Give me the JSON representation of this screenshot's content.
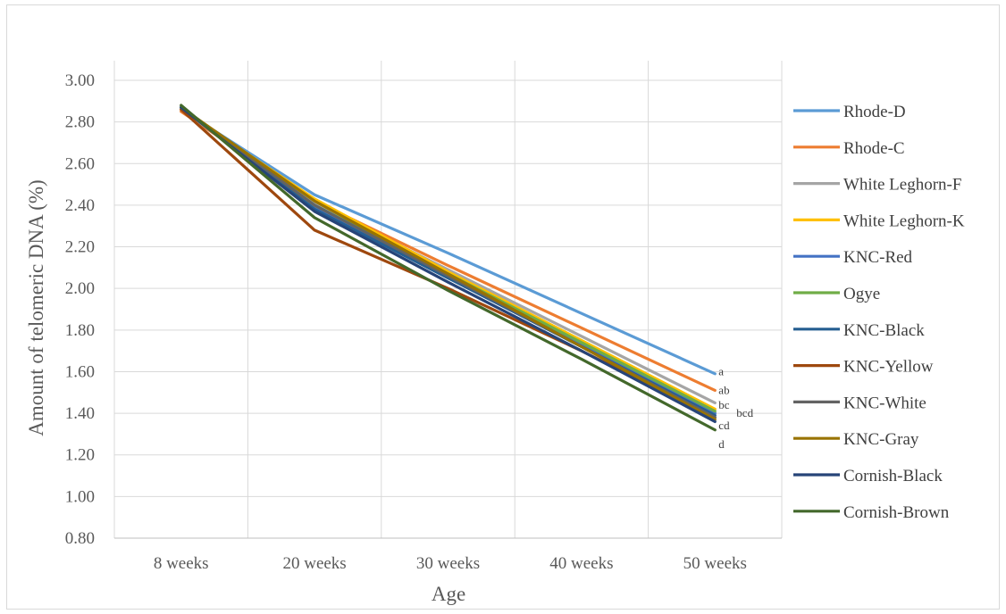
{
  "chart_data": {
    "type": "line",
    "title": "",
    "xlabel": "Age",
    "ylabel": "Amount of telomeric DNA (%)",
    "categories": [
      "8 weeks",
      "20 weeks",
      "30 weeks",
      "40 weeks",
      "50 weeks"
    ],
    "yticks": [
      "0.80",
      "1.00",
      "1.20",
      "1.40",
      "1.60",
      "1.80",
      "2.00",
      "2.20",
      "2.40",
      "2.60",
      "2.80",
      "3.00"
    ],
    "ylim": [
      0.8,
      3.0
    ],
    "grid": true,
    "legend_position": "right",
    "series": [
      {
        "name": "Rhode-D",
        "color": "#5B9BD5",
        "values": [
          2.86,
          2.45,
          2.17,
          1.88,
          1.59
        ]
      },
      {
        "name": "Rhode-C",
        "color": "#ED7D31",
        "values": [
          2.85,
          2.42,
          2.11,
          1.81,
          1.51
        ]
      },
      {
        "name": "White Leghorn-F",
        "color": "#A5A5A5",
        "values": [
          2.86,
          2.41,
          2.09,
          1.77,
          1.45
        ]
      },
      {
        "name": "White Leghorn-K",
        "color": "#FFC000",
        "values": [
          2.86,
          2.43,
          2.08,
          1.75,
          1.42
        ]
      },
      {
        "name": "KNC-Red",
        "color": "#4472C4",
        "values": [
          2.87,
          2.39,
          2.06,
          1.73,
          1.4
        ]
      },
      {
        "name": "Ogye",
        "color": "#70AD47",
        "values": [
          2.87,
          2.4,
          2.07,
          1.74,
          1.41
        ]
      },
      {
        "name": "KNC-Black",
        "color": "#255E91",
        "values": [
          2.87,
          2.38,
          2.05,
          1.72,
          1.39
        ]
      },
      {
        "name": "KNC-Yellow",
        "color": "#9E480E",
        "values": [
          2.86,
          2.28,
          2.0,
          1.7,
          1.38
        ]
      },
      {
        "name": "KNC-White",
        "color": "#636363",
        "values": [
          2.87,
          2.4,
          2.06,
          1.72,
          1.38
        ]
      },
      {
        "name": "KNC-Gray",
        "color": "#997300",
        "values": [
          2.87,
          2.42,
          2.07,
          1.72,
          1.37
        ]
      },
      {
        "name": "Cornish-Black",
        "color": "#264478",
        "values": [
          2.87,
          2.37,
          2.03,
          1.7,
          1.36
        ]
      },
      {
        "name": "Cornish-Brown",
        "color": "#43682B",
        "values": [
          2.88,
          2.34,
          1.99,
          1.66,
          1.32
        ]
      }
    ],
    "annotations": [
      {
        "text": "a",
        "y": 1.6
      },
      {
        "text": "ab",
        "y": 1.51
      },
      {
        "text": "bc",
        "y": 1.44
      },
      {
        "text": "bcd",
        "y": 1.4
      },
      {
        "text": "cd",
        "y": 1.34
      },
      {
        "text": "d",
        "y": 1.25
      }
    ]
  }
}
